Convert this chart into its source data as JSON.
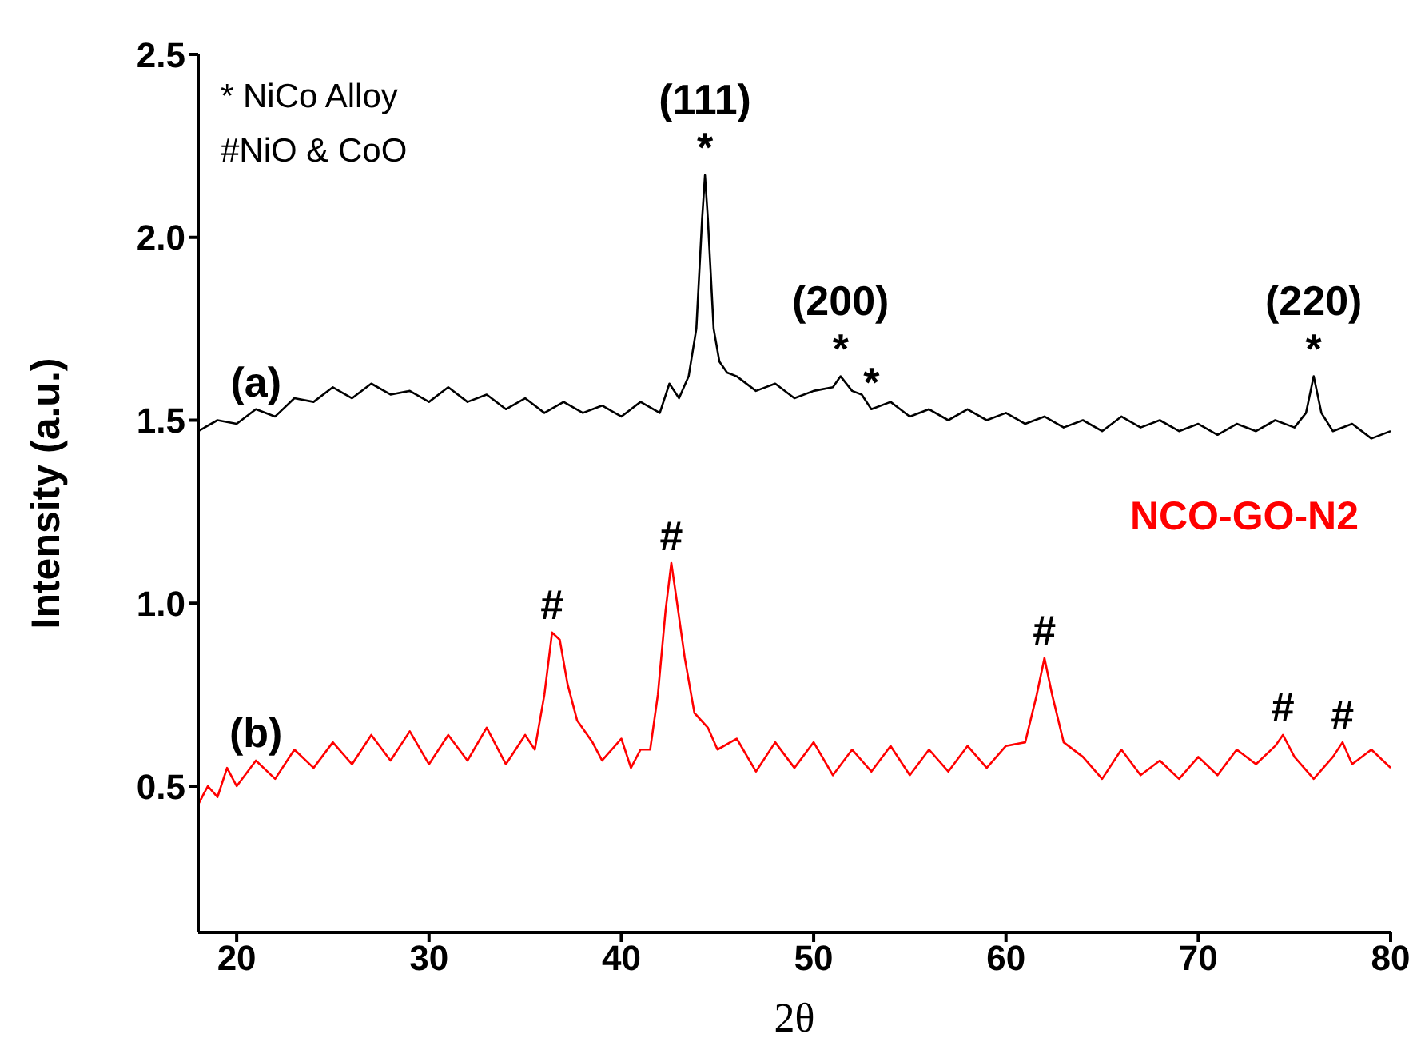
{
  "chart_data": {
    "type": "line",
    "xlabel": "2θ",
    "ylabel": "Intensity (a.u.)",
    "xlim": [
      18,
      80
    ],
    "xticks": [
      20,
      30,
      40,
      50,
      60,
      70,
      80
    ],
    "ylim": [
      0.1,
      2.5
    ],
    "yticks": [
      0.5,
      {
        "value": 1,
        "label": "1.0"
      },
      1.5,
      {
        "value": 2,
        "label": "2.0"
      },
      2.5
    ],
    "grid": false,
    "legend": false,
    "marker": "none",
    "line_style": "solid",
    "series": [
      {
        "color": "#000000",
        "x": [
          18,
          19,
          20,
          21,
          22,
          23,
          24,
          25,
          26,
          27,
          28,
          29,
          30,
          31,
          32,
          33,
          34,
          35,
          36,
          37,
          38,
          39,
          40,
          41,
          42,
          42.5,
          43,
          43.5,
          43.9,
          44.2,
          44.35,
          44.5,
          44.8,
          45.1,
          45.5,
          46,
          47,
          48,
          49,
          50,
          51,
          51.4,
          52,
          52.5,
          53,
          54,
          55,
          56,
          57,
          58,
          59,
          60,
          61,
          62,
          63,
          64,
          65,
          66,
          67,
          68,
          69,
          70,
          71,
          72,
          73,
          74,
          75,
          75.6,
          76,
          76.4,
          77,
          78,
          79,
          80
        ],
        "values": [
          1.47,
          1.5,
          1.49,
          1.53,
          1.51,
          1.56,
          1.55,
          1.59,
          1.56,
          1.6,
          1.57,
          1.58,
          1.55,
          1.59,
          1.55,
          1.57,
          1.53,
          1.56,
          1.52,
          1.55,
          1.52,
          1.54,
          1.51,
          1.55,
          1.52,
          1.6,
          1.56,
          1.62,
          1.75,
          2.05,
          2.17,
          2.05,
          1.75,
          1.66,
          1.63,
          1.62,
          1.58,
          1.6,
          1.56,
          1.58,
          1.59,
          1.62,
          1.58,
          1.57,
          1.53,
          1.55,
          1.51,
          1.53,
          1.5,
          1.53,
          1.5,
          1.52,
          1.49,
          1.51,
          1.48,
          1.5,
          1.47,
          1.51,
          1.48,
          1.5,
          1.47,
          1.49,
          1.46,
          1.49,
          1.47,
          1.5,
          1.48,
          1.52,
          1.62,
          1.52,
          1.47,
          1.49,
          1.45,
          1.47
        ]
      },
      {
        "name": "NCO-GO-N2",
        "color": "#ff0000",
        "x": [
          18,
          18.5,
          19,
          19.5,
          20,
          21,
          22,
          23,
          24,
          25,
          26,
          27,
          28,
          29,
          30,
          31,
          32,
          33,
          34,
          35,
          35.5,
          36,
          36.4,
          36.8,
          37.2,
          37.7,
          38.5,
          39,
          40,
          40.5,
          41,
          41.5,
          41.9,
          42.3,
          42.6,
          42.9,
          43.3,
          43.8,
          44.5,
          45,
          46,
          47,
          48,
          49,
          50,
          51,
          52,
          53,
          54,
          55,
          56,
          57,
          58,
          59,
          60,
          61,
          61.6,
          62,
          62.4,
          63,
          64,
          65,
          66,
          67,
          68,
          69,
          70,
          71,
          72,
          73,
          74,
          74.4,
          75,
          75.5,
          76,
          77,
          77.5,
          78,
          79,
          80
        ],
        "values": [
          0.45,
          0.5,
          0.47,
          0.55,
          0.5,
          0.57,
          0.52,
          0.6,
          0.55,
          0.62,
          0.56,
          0.64,
          0.57,
          0.65,
          0.56,
          0.64,
          0.57,
          0.66,
          0.56,
          0.64,
          0.6,
          0.75,
          0.92,
          0.9,
          0.78,
          0.68,
          0.62,
          0.57,
          0.63,
          0.55,
          0.6,
          0.6,
          0.75,
          0.98,
          1.11,
          1.0,
          0.85,
          0.7,
          0.66,
          0.6,
          0.63,
          0.54,
          0.62,
          0.55,
          0.62,
          0.53,
          0.6,
          0.54,
          0.61,
          0.53,
          0.6,
          0.54,
          0.61,
          0.55,
          0.61,
          0.62,
          0.75,
          0.85,
          0.75,
          0.62,
          0.58,
          0.52,
          0.6,
          0.53,
          0.57,
          0.52,
          0.58,
          0.53,
          0.6,
          0.56,
          0.61,
          0.64,
          0.58,
          0.55,
          0.52,
          0.58,
          0.62,
          0.56,
          0.6,
          0.55
        ]
      }
    ],
    "annotations": [
      "* NiCo Alloy",
      "#NiO & CoO",
      {
        "text": "*",
        "x": 44.35,
        "y": 2.17
      },
      {
        "text": "(111)",
        "x": 44.35,
        "y": 2.17
      },
      {
        "text": "*",
        "x": 51.4,
        "y": 1.62
      },
      {
        "text": "(200)",
        "x": 51.4,
        "y": 1.62
      },
      {
        "text": "*",
        "x": 53,
        "y": 1.53
      },
      {
        "text": "*",
        "x": 76,
        "y": 1.62
      },
      {
        "text": "(220)",
        "x": 76,
        "y": 1.62
      },
      {
        "text": "(a)",
        "x": 21,
        "y": 1.53
      },
      {
        "text": "(b)",
        "x": 21,
        "y": 0.57
      },
      {
        "text": "#",
        "x": 36.4,
        "y": 0.92
      },
      {
        "text": "#",
        "x": 42.6,
        "y": 1.11
      },
      {
        "text": "#",
        "x": 62,
        "y": 0.85
      },
      {
        "text": "#",
        "x": 74.4,
        "y": 0.64
      },
      {
        "text": "#",
        "x": 77.5,
        "y": 0.62
      }
    ]
  }
}
